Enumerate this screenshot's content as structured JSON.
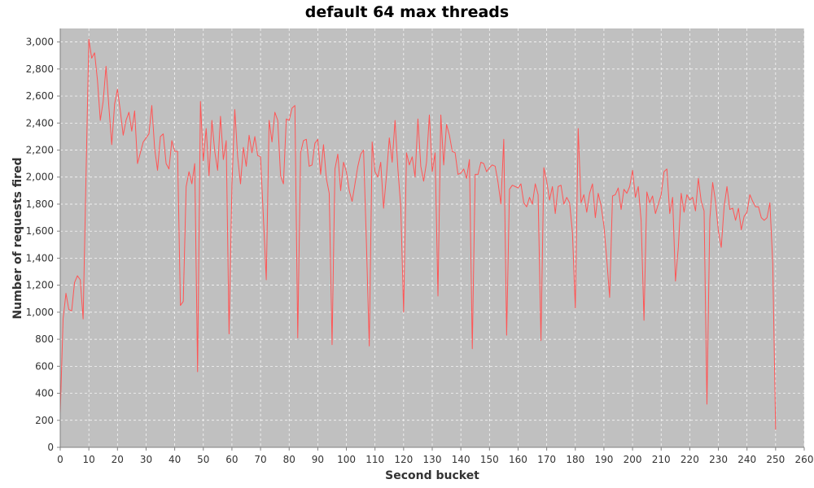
{
  "colors": {
    "background": "#ffffff",
    "plot_background": "#c0c0c0",
    "series_line": "#ff5555",
    "grid": "#ffffff",
    "axis": "#808080",
    "text": "#333333"
  },
  "chart_data": {
    "type": "line",
    "title": "default 64 max threads",
    "xlabel": "Second bucket",
    "ylabel": "Number of requests fired",
    "xlim": [
      0,
      260
    ],
    "ylim": [
      0,
      3100
    ],
    "x_ticks": [
      0,
      10,
      20,
      30,
      40,
      50,
      60,
      70,
      80,
      90,
      100,
      110,
      120,
      130,
      140,
      150,
      160,
      170,
      180,
      190,
      200,
      210,
      220,
      230,
      240,
      250,
      260
    ],
    "y_ticks": [
      0,
      200,
      400,
      600,
      800,
      1000,
      1200,
      1400,
      1600,
      1800,
      2000,
      2200,
      2400,
      2600,
      2800,
      3000
    ],
    "x_tick_labels": [
      "0",
      "10",
      "20",
      "30",
      "40",
      "50",
      "60",
      "70",
      "80",
      "90",
      "100",
      "110",
      "120",
      "130",
      "140",
      "150",
      "160",
      "170",
      "180",
      "190",
      "200",
      "210",
      "220",
      "230",
      "240",
      "250",
      "260"
    ],
    "y_tick_labels": [
      "0",
      "200",
      "400",
      "600",
      "800",
      "1,000",
      "1,200",
      "1,400",
      "1,600",
      "1,800",
      "2,000",
      "2,200",
      "2,400",
      "2,600",
      "2,800",
      "3,000"
    ],
    "grid": true,
    "legend": "none",
    "series": [
      {
        "color": "#ff5555",
        "values": [
          250,
          950,
          1140,
          1020,
          1010,
          1220,
          1270,
          1240,
          950,
          2000,
          3020,
          2880,
          2920,
          2720,
          2420,
          2560,
          2820,
          2520,
          2240,
          2540,
          2650,
          2490,
          2310,
          2420,
          2480,
          2340,
          2490,
          2100,
          2180,
          2260,
          2290,
          2320,
          2530,
          2210,
          2050,
          2300,
          2320,
          2100,
          2060,
          2270,
          2190,
          2190,
          1050,
          1080,
          1930,
          2040,
          1950,
          2100,
          560,
          2560,
          2120,
          2360,
          2010,
          2420,
          2190,
          2050,
          2450,
          2130,
          2270,
          840,
          1940,
          2500,
          2150,
          1950,
          2220,
          2080,
          2310,
          2180,
          2300,
          2160,
          2150,
          1700,
          1240,
          2420,
          2260,
          2480,
          2420,
          2010,
          1950,
          2430,
          2420,
          2510,
          2530,
          810,
          2180,
          2270,
          2280,
          2080,
          2090,
          2250,
          2280,
          2020,
          2240,
          1990,
          1880,
          760,
          2060,
          2170,
          1900,
          2110,
          2040,
          1900,
          1820,
          1950,
          2080,
          2170,
          2200,
          1510,
          750,
          2260,
          2040,
          2000,
          2110,
          1770,
          2010,
          2290,
          2110,
          2420,
          2060,
          1780,
          1000,
          2180,
          2090,
          2150,
          2000,
          2430,
          2080,
          1970,
          2110,
          2460,
          2040,
          2180,
          1120,
          2460,
          2090,
          2390,
          2310,
          2190,
          2180,
          2020,
          2030,
          2060,
          1990,
          2130,
          730,
          2020,
          2020,
          2110,
          2100,
          2040,
          2070,
          2090,
          2080,
          1960,
          1800,
          2280,
          830,
          1910,
          1940,
          1930,
          1920,
          1950,
          1810,
          1780,
          1850,
          1800,
          1950,
          1870,
          790,
          2070,
          1970,
          1830,
          1930,
          1730,
          1930,
          1940,
          1800,
          1850,
          1810,
          1590,
          1030,
          2360,
          1810,
          1870,
          1740,
          1880,
          1950,
          1700,
          1880,
          1790,
          1640,
          1390,
          1110,
          1860,
          1870,
          1920,
          1760,
          1910,
          1880,
          1930,
          2050,
          1850,
          1930,
          1680,
          940,
          1890,
          1810,
          1860,
          1730,
          1800,
          1870,
          2040,
          2060,
          1730,
          1850,
          1230,
          1480,
          1880,
          1740,
          1870,
          1830,
          1850,
          1750,
          1990,
          1820,
          1750,
          320,
          1690,
          1960,
          1820,
          1600,
          1480,
          1780,
          1930,
          1760,
          1770,
          1680,
          1770,
          1610,
          1710,
          1740,
          1870,
          1820,
          1780,
          1780,
          1700,
          1680,
          1700,
          1810,
          1360,
          130
        ]
      }
    ]
  }
}
